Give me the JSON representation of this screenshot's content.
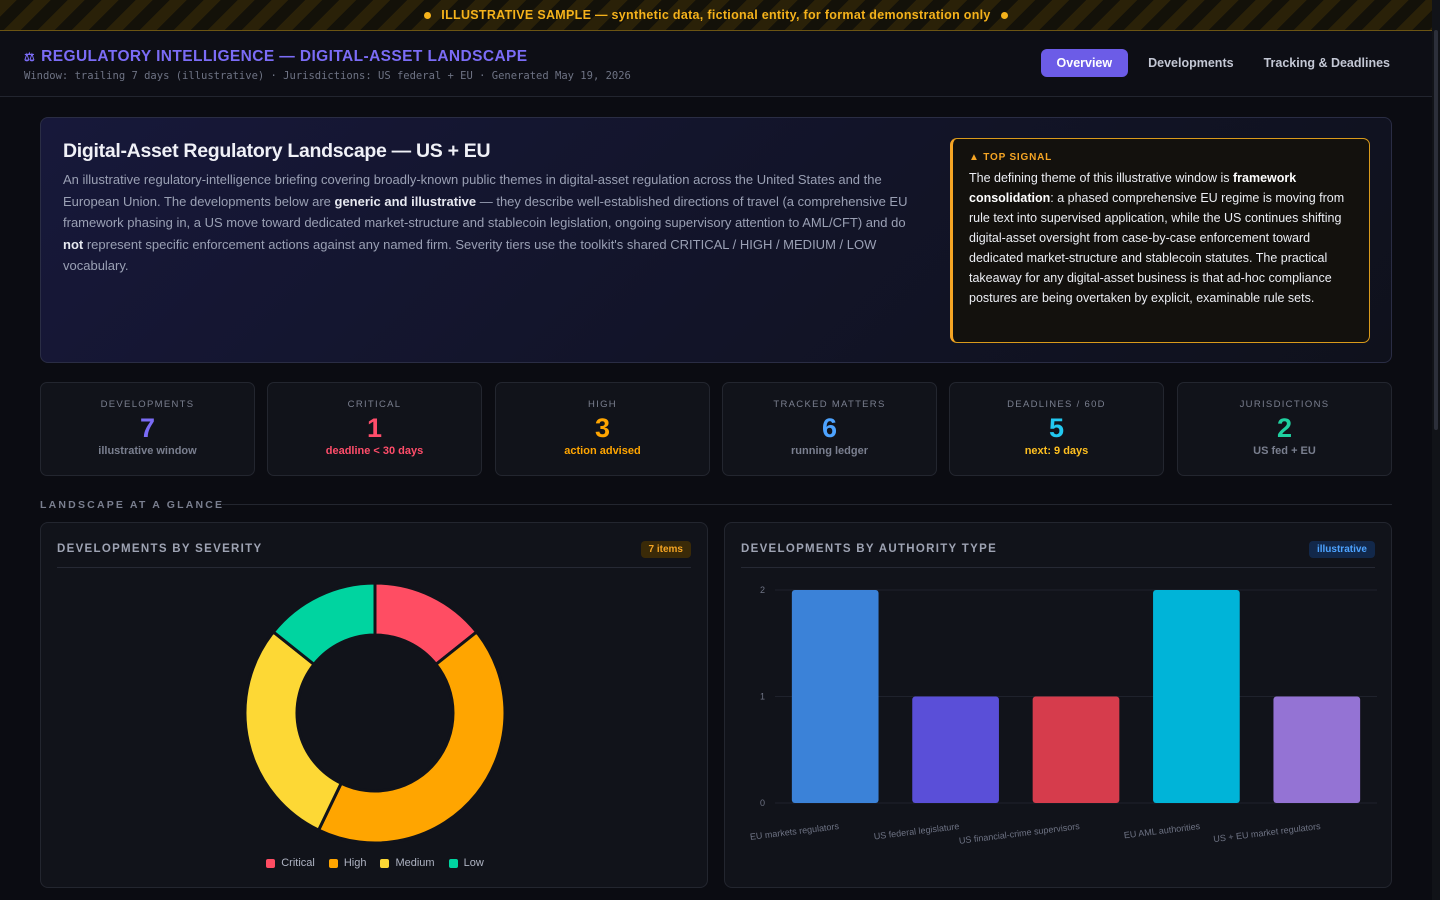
{
  "banner": {
    "text": "ILLUSTRATIVE SAMPLE — synthetic data, fictional entity, for format demonstration only"
  },
  "header": {
    "title": "REGULATORY INTELLIGENCE — DIGITAL-ASSET LANDSCAPE",
    "icon": "scale-icon",
    "subtitle": "Window: trailing 7 days (illustrative) · Jurisdictions: US federal + EU · Generated May 19, 2026"
  },
  "nav": {
    "tabs": [
      "Overview",
      "Developments",
      "Tracking & Deadlines"
    ],
    "active": "Overview"
  },
  "hero": {
    "title": "Digital-Asset Regulatory Landscape — US + EU",
    "desc_1": "An illustrative regulatory-intelligence briefing covering broadly-known public themes in digital-asset regulation across the United States and the European Union. The developments below are ",
    "desc_bold_1": "generic and illustrative",
    "desc_2": " — they describe well-established directions of travel (a comprehensive EU framework phasing in, a US move toward dedicated market-structure and stablecoin legislation, ongoing supervisory attention to AML/CFT) and do ",
    "desc_bold_2": "not",
    "desc_3": " represent specific enforcement actions against any named firm. Severity tiers use the toolkit's shared CRITICAL / HIGH / MEDIUM / LOW vocabulary.",
    "signal": {
      "label": "▲ TOP SIGNAL",
      "text_1": "The defining theme of this illustrative window is ",
      "bold": "framework consolidation",
      "text_2": ": a phased comprehensive EU regime is moving from rule text into supervised application, while the US continues shifting digital-asset oversight from case-by-case enforcement toward dedicated market-structure and stablecoin statutes. The practical takeaway for any digital-asset business is that ad-hoc compliance postures are being overtaken by explicit, examinable rule sets."
    }
  },
  "kpis": [
    {
      "label": "DEVELOPMENTS",
      "value": "7",
      "sub": "illustrative window",
      "color": "#7b6cf6",
      "sub_color": "#7a7f8f"
    },
    {
      "label": "CRITICAL",
      "value": "1",
      "sub": "deadline < 30 days",
      "color": "#ff4d6a",
      "sub_color": "#ff4d6a"
    },
    {
      "label": "HIGH",
      "value": "3",
      "sub": "action advised",
      "color": "#ffa500",
      "sub_color": "#ffa500"
    },
    {
      "label": "TRACKED MATTERS",
      "value": "6",
      "sub": "running ledger",
      "color": "#4da3ff",
      "sub_color": "#7a7f8f"
    },
    {
      "label": "DEADLINES / 60D",
      "value": "5",
      "sub": "next: 9 days",
      "color": "#22c8f0",
      "sub_color": "#ffc020"
    },
    {
      "label": "JURISDICTIONS",
      "value": "2",
      "sub": "US fed + EU",
      "color": "#1fd1a0",
      "sub_color": "#7a7f8f"
    }
  ],
  "section": {
    "title": "LANDSCAPE AT A GLANCE"
  },
  "severity_panel": {
    "title": "DEVELOPMENTS BY SEVERITY",
    "badge": "7 items"
  },
  "authority_panel": {
    "title": "DEVELOPMENTS BY AUTHORITY TYPE",
    "badge": "illustrative"
  },
  "chart_data": [
    {
      "type": "pie",
      "title": "DEVELOPMENTS BY SEVERITY",
      "categories": [
        "Critical",
        "High",
        "Medium",
        "Low"
      ],
      "values": [
        1,
        3,
        2,
        1
      ],
      "colors": [
        "#ff4d63",
        "#ffa500",
        "#fdd835",
        "#00d4a0"
      ],
      "legend": "bottom",
      "donut": true
    },
    {
      "type": "bar",
      "title": "DEVELOPMENTS BY AUTHORITY TYPE",
      "categories": [
        "EU markets regulators",
        "US federal legislature",
        "US financial-crime supervisors",
        "EU AML authorities",
        "US + EU market regulators"
      ],
      "values": [
        2,
        1,
        1,
        2,
        1
      ],
      "colors": [
        "#3b82d8",
        "#5a4fd8",
        "#d63c4c",
        "#00b4d8",
        "#9473d4"
      ],
      "ylim": [
        0,
        2
      ],
      "yticks": [
        "0",
        "1",
        "2"
      ],
      "grid": true
    }
  ]
}
